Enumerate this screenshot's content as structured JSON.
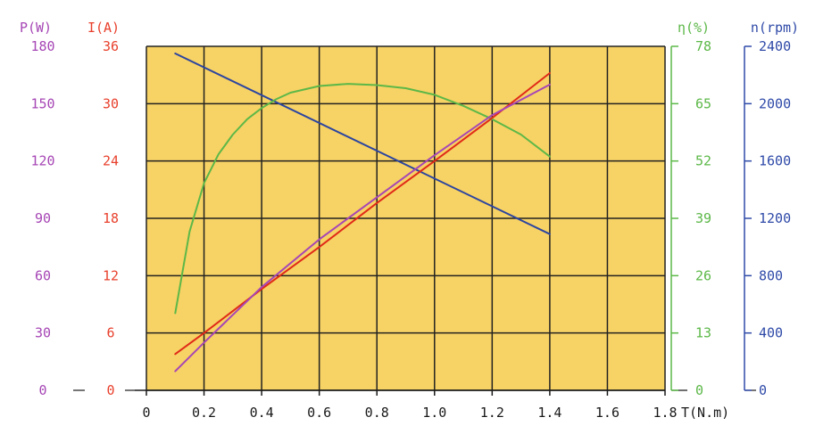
{
  "chart_data": {
    "type": "line",
    "x_axis": {
      "label": "T(N.m)",
      "range": [
        0,
        1.8
      ],
      "ticks": [
        "0",
        "0.2",
        "0.4",
        "0.6",
        "0.8",
        "1.0",
        "1.2",
        "1.4",
        "1.6",
        "1.8"
      ]
    },
    "y_axes": [
      {
        "id": "power",
        "label": "P(W)",
        "side": "left",
        "range": [
          0,
          180
        ],
        "ticks": [
          "0",
          "30",
          "60",
          "90",
          "120",
          "150",
          "180"
        ],
        "color": "#a646b5"
      },
      {
        "id": "current",
        "label": "I(A)",
        "side": "left",
        "range": [
          0,
          36
        ],
        "ticks": [
          "0",
          "6",
          "12",
          "18",
          "24",
          "30",
          "36"
        ],
        "color": "#e8402c"
      },
      {
        "id": "efficiency",
        "label": "η(%)",
        "side": "right",
        "range": [
          0,
          78
        ],
        "ticks": [
          "0",
          "13",
          "26",
          "39",
          "52",
          "65",
          "78"
        ],
        "color": "#5cb848"
      },
      {
        "id": "speed",
        "label": "n(rpm)",
        "side": "right",
        "range": [
          0,
          2400
        ],
        "ticks": [
          "0",
          "400",
          "800",
          "1200",
          "1600",
          "2000",
          "2400"
        ],
        "color": "#2f4aa8"
      }
    ],
    "grid": true,
    "plot_background": "#f7d264",
    "series": [
      {
        "axis": "speed",
        "color": "#2c45a0",
        "x": [
          0.1,
          1.4
        ],
        "y": [
          2350,
          1090
        ]
      },
      {
        "axis": "efficiency",
        "color": "#5cb848",
        "x": [
          0.1,
          0.15,
          0.2,
          0.25,
          0.3,
          0.35,
          0.4,
          0.45,
          0.5,
          0.6,
          0.7,
          0.8,
          0.9,
          1.0,
          1.1,
          1.2,
          1.3,
          1.4
        ],
        "y": [
          17.5,
          36,
          47,
          53.5,
          58,
          61.5,
          64,
          66,
          67.5,
          69,
          69.5,
          69.2,
          68.5,
          67,
          64.5,
          61.5,
          58,
          53
        ]
      },
      {
        "axis": "current",
        "color": "#e02a18",
        "x": [
          0.1,
          0.2,
          0.4,
          0.6,
          0.8,
          1.0,
          1.2,
          1.4
        ],
        "y": [
          3.8,
          6,
          10.6,
          15,
          19.6,
          24,
          28.5,
          33.2
        ]
      },
      {
        "axis": "power",
        "color": "#a646b5",
        "x": [
          0.1,
          0.2,
          0.4,
          0.6,
          0.8,
          1.0,
          1.2,
          1.4
        ],
        "y": [
          10,
          25,
          54,
          79,
          101,
          123,
          144,
          160
        ]
      }
    ]
  }
}
